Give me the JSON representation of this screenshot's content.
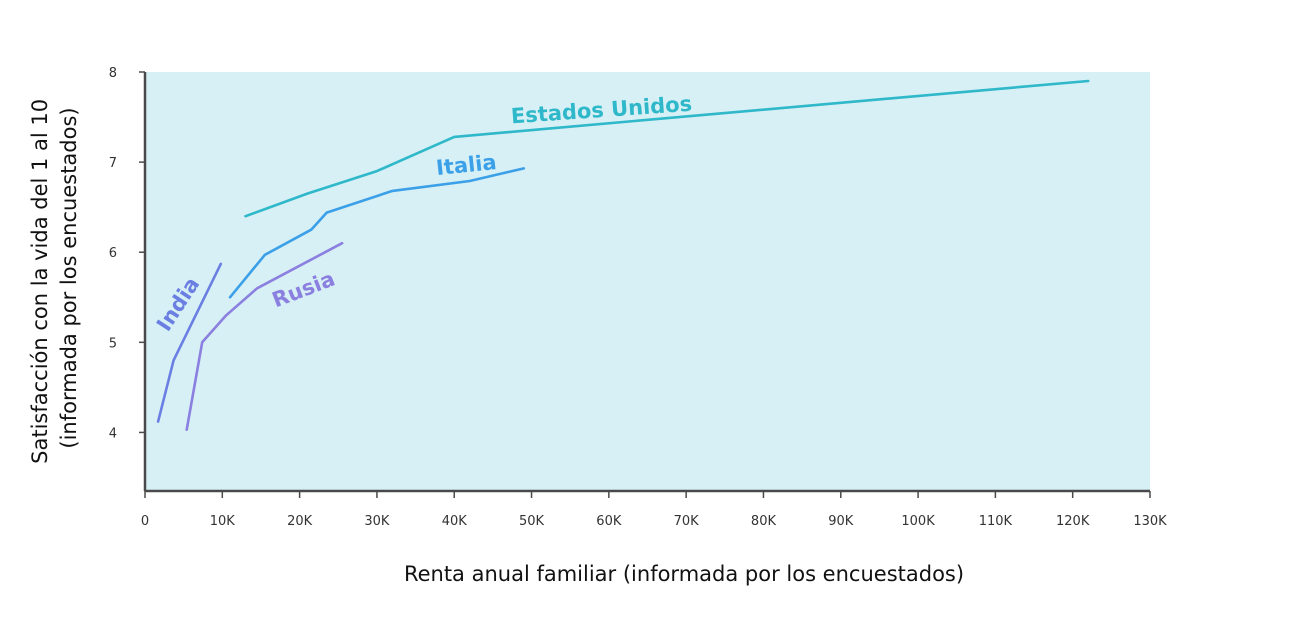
{
  "chart_data": {
    "type": "line",
    "title": "",
    "xlabel": "Renta anual familiar (informada por los encuestados)",
    "ylabel_lines": [
      "Satisfacción con la vida del 1 al 10",
      "(informada por los encuestados)"
    ],
    "xlim": [
      0,
      130000
    ],
    "ylim": [
      3.35,
      8
    ],
    "x_ticks": [
      0,
      10000,
      20000,
      30000,
      40000,
      50000,
      60000,
      70000,
      80000,
      90000,
      100000,
      110000,
      120000,
      130000
    ],
    "x_tick_labels": [
      "0",
      "10K",
      "20K",
      "30K",
      "40K",
      "50K",
      "60K",
      "70K",
      "80K",
      "90K",
      "100K",
      "110K",
      "120K",
      "130K"
    ],
    "y_ticks": [
      4,
      5,
      6,
      7,
      8
    ],
    "y_tick_labels": [
      "4",
      "5",
      "6",
      "7",
      "8"
    ],
    "grid": false,
    "background_color": "#d6f0f5",
    "series": [
      {
        "name": "Estados Unidos",
        "color": "#2fb8c9",
        "x": [
          13000,
          21000,
          30000,
          40000,
          122000
        ],
        "y": [
          6.4,
          6.65,
          6.9,
          7.28,
          7.9
        ]
      },
      {
        "name": "Italia",
        "color": "#3ba0e8",
        "x": [
          11000,
          15500,
          21500,
          23500,
          32000,
          42000,
          49000
        ],
        "y": [
          5.5,
          5.97,
          6.25,
          6.44,
          6.68,
          6.79,
          6.93
        ]
      },
      {
        "name": "Rusia",
        "color": "#8b7fe0",
        "x": [
          5400,
          7400,
          10500,
          14500,
          25500
        ],
        "y": [
          4.03,
          5.0,
          5.3,
          5.6,
          6.1
        ]
      },
      {
        "name": "India",
        "color": "#6b7fe3",
        "x": [
          1700,
          3700,
          9800
        ],
        "y": [
          4.12,
          4.8,
          5.87
        ]
      }
    ]
  }
}
